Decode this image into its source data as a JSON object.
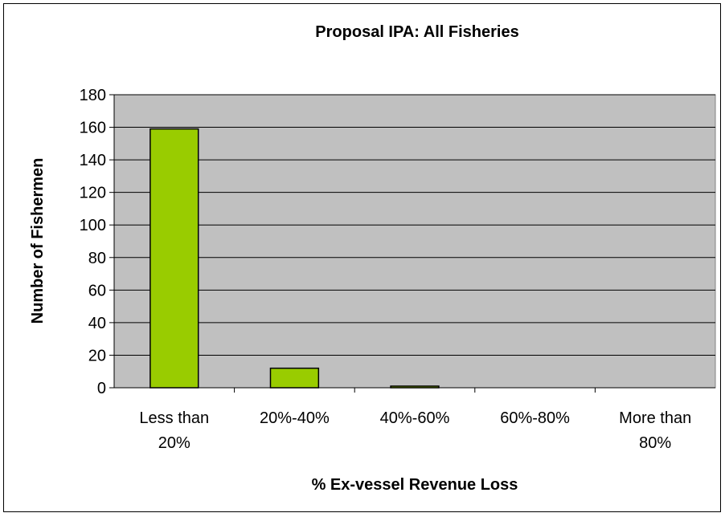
{
  "chart_data": {
    "type": "bar",
    "title": "Proposal IPA: All Fisheries",
    "xlabel": "% Ex-vessel Revenue Loss",
    "ylabel": "Number of Fishermen",
    "categories": [
      [
        "Less than",
        "20%"
      ],
      [
        "20%-40%"
      ],
      [
        "40%-60%"
      ],
      [
        "60%-80%"
      ],
      [
        "More than",
        "80%"
      ]
    ],
    "values": [
      159,
      12,
      1,
      0,
      0
    ],
    "ylim": [
      0,
      180
    ],
    "yticks": [
      0,
      20,
      40,
      60,
      80,
      100,
      120,
      140,
      160,
      180
    ],
    "grid": true,
    "legend": "none",
    "colors": {
      "bar_fill": "#99CC00",
      "bar_stroke": "#000000",
      "plot_background": "#C0C0C0",
      "gridline": "#000000"
    }
  }
}
